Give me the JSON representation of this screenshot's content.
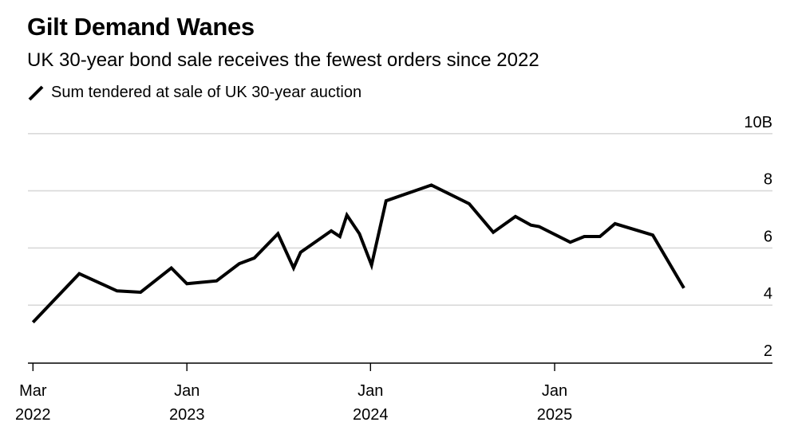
{
  "title": "Gilt Demand Wanes",
  "subtitle": "UK 30-year bond sale receives the fewest orders since 2022",
  "legend_label": "Sum tendered at sale of UK 30-year auction",
  "chart_data": {
    "type": "line",
    "title": "Gilt Demand Wanes",
    "subtitle": "UK 30-year bond sale receives the fewest orders since 2022",
    "xlabel": "",
    "ylabel": "",
    "ylim": [
      1,
      10
    ],
    "yticks": [
      2,
      4,
      6,
      8,
      10
    ],
    "ytick_labels": [
      "2",
      "4",
      "6",
      "8",
      "10B"
    ],
    "xlim": [
      "2022-02-19",
      "2026-03-10"
    ],
    "xticks": [
      "2022-03-01",
      "2023-01-01",
      "2024-01-01",
      "2025-01-01"
    ],
    "xtick_labels": [
      [
        "Mar",
        "2022"
      ],
      [
        "Jan",
        "2023"
      ],
      [
        "Jan",
        "2024"
      ],
      [
        "Jan",
        "2025"
      ]
    ],
    "grid": "horizontal",
    "legend_position": "top-left",
    "line_color": "#000000",
    "grid_color": "#d9d9d9",
    "series": [
      {
        "name": "Sum tendered at sale of UK 30-year auction",
        "x": [
          "2022-03-01",
          "2022-06-01",
          "2022-08-15",
          "2022-10-01",
          "2022-12-01",
          "2023-01-01",
          "2023-03-01",
          "2023-04-15",
          "2023-05-15",
          "2023-07-01",
          "2023-08-01",
          "2023-08-15",
          "2023-10-15",
          "2023-11-01",
          "2023-11-15",
          "2023-12-10",
          "2024-01-03",
          "2024-02-01",
          "2024-05-01",
          "2024-07-15",
          "2024-09-01",
          "2024-10-15",
          "2024-11-15",
          "2024-12-01",
          "2025-02-01",
          "2025-03-01",
          "2025-04-01",
          "2025-05-01",
          "2025-07-15",
          "2025-09-15"
        ],
        "y": [
          3.4,
          5.1,
          4.5,
          4.45,
          5.3,
          4.75,
          4.85,
          5.45,
          5.65,
          6.5,
          5.3,
          5.85,
          6.6,
          6.4,
          7.15,
          6.5,
          5.4,
          7.65,
          8.2,
          7.55,
          6.55,
          7.1,
          6.8,
          6.75,
          6.2,
          6.4,
          6.4,
          6.85,
          6.45,
          4.6
        ]
      }
    ]
  }
}
